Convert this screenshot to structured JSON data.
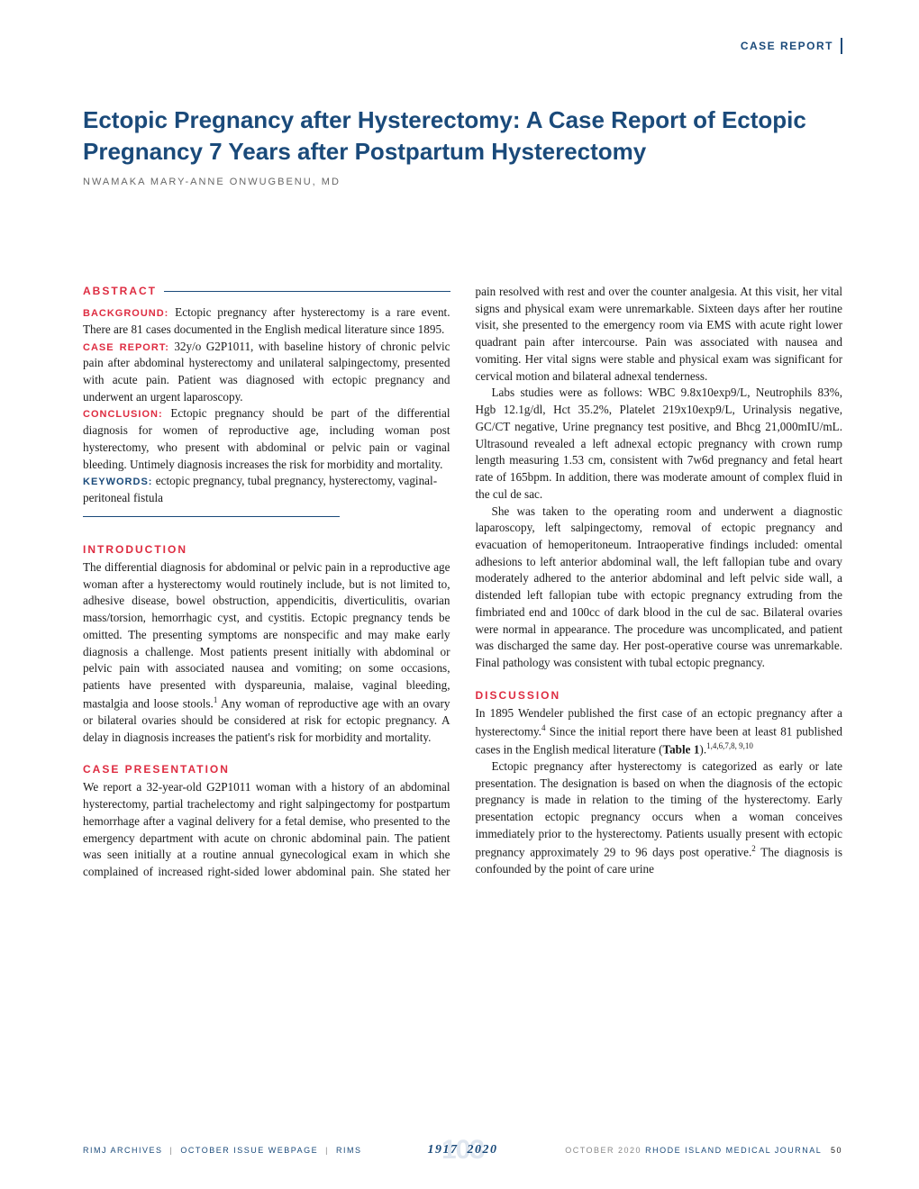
{
  "colors": {
    "accent_blue": "#1a4a7a",
    "accent_red": "#de2c41",
    "text": "#1a1a1a",
    "muted": "#888888",
    "background": "#ffffff",
    "footer_bg_num": "#dfe6ef"
  },
  "typography": {
    "title_fontsize": 26,
    "body_fontsize": 13.2,
    "section_header_fontsize": 12,
    "author_fontsize": 11,
    "footer_fontsize": 9
  },
  "header": {
    "label": "CASE REPORT"
  },
  "title": "Ectopic Pregnancy after Hysterectomy: A Case Report of Ectopic Pregnancy 7 Years after Postpartum Hysterectomy",
  "author": "NWAMAKA MARY-ANNE ONWUGBENU, MD",
  "abstract": {
    "header": "ABSTRACT",
    "background_label": "BACKGROUND:",
    "background_text": " Ectopic pregnancy after hysterectomy is a rare event. There are 81 cases documented in the English medical literature since 1895.",
    "case_label": "CASE REPORT:",
    "case_text": " 32y/o G2P1011, with baseline history of chronic pelvic pain after abdominal hysterectomy and unilateral salpingectomy, presented with acute pain. Patient was diagnosed with ectopic pregnancy and underwent an urgent laparoscopy.",
    "conclusion_label": "CONCLUSION:",
    "conclusion_text": " Ectopic pregnancy should be part of the differential diagnosis for women of reproductive age, including woman post hysterectomy, who present with abdominal or pelvic pain or vaginal bleeding. Untimely diagnosis increases the risk for morbidity and mortality.",
    "keywords_label": "KEYWORDS:",
    "keywords_text": " ectopic pregnancy, tubal pregnancy, hysterectomy, vaginal-peritoneal fistula"
  },
  "sections": {
    "introduction": {
      "header": "INTRODUCTION",
      "p1a": "The differential diagnosis for abdominal or pelvic pain in a reproductive age woman after a hysterectomy would routinely include, but is not limited to, adhesive disease, bowel obstruction, appendicitis, diverticulitis, ovarian mass/torsion, hemorrhagic cyst, and cystitis. Ectopic pregnancy tends be omitted. The presenting symptoms are nonspecific and may make early diagnosis a challenge. Most patients present initially with abdominal or pelvic pain with associated nausea and vomiting; on some occasions, patients have presented with dyspareunia, malaise, vaginal bleeding, mastalgia and loose stools.",
      "p1sup": "1",
      "p1b": " Any woman of reproductive age with an ovary or bilateral ovaries should be considered at risk for ectopic pregnancy. A delay in diagnosis increases the patient's risk for morbidity and mortality."
    },
    "case_presentation": {
      "header": "CASE PRESENTATION",
      "p1": "We report a 32-year-old G2P1011 woman with a history of an abdominal hysterectomy, partial trachelectomy and right salpingectomy for postpartum hemorrhage after a vaginal delivery for a fetal demise, who presented to the emergency department with acute on chronic abdominal pain. The patient was seen initially at a routine annual gynecological exam in which she complained of increased right-sided lower abdominal pain. She stated her pain resolved with rest and over the counter analgesia. At this visit, her vital signs and physical exam were unremarkable. Sixteen days after her routine visit, she presented to the emergency room via EMS with acute right lower quadrant pain after intercourse. Pain was associated with nausea and vomiting. Her vital signs were stable and physical exam was significant for cervical motion and bilateral adnexal tenderness.",
      "p2": "Labs studies were as follows: WBC 9.8x10exp9/L, Neutrophils 83%, Hgb 12.1g/dl, Hct 35.2%, Platelet 219x10exp9/L, Urinalysis negative, GC/CT negative, Urine pregnancy test positive, and Bhcg 21,000mIU/mL. Ultrasound revealed a left adnexal ectopic pregnancy with crown rump length measuring 1.53 cm, consistent with 7w6d pregnancy and fetal heart rate of 165bpm. In addition, there was moderate amount of complex fluid in the cul de sac.",
      "p3": "She was taken to the operating room and underwent a diagnostic laparoscopy, left salpingectomy, removal of ectopic pregnancy and evacuation of hemoperitoneum. Intraoperative findings included: omental adhesions to left anterior abdominal wall, the left fallopian tube and ovary moderately adhered to the anterior abdominal and left pelvic side wall, a distended left fallopian tube with ectopic pregnancy extruding from the fimbriated end and 100cc of dark blood in the cul de sac. Bilateral ovaries were normal in appearance. The procedure was uncomplicated, and patient was discharged the same day. Her post-operative course was unremarkable. Final pathology was consistent with tubal ectopic pregnancy."
    },
    "discussion": {
      "header": "DISCUSSION",
      "p1a": "In 1895 Wendeler published the first case of an ectopic pregnancy after a hysterectomy.",
      "p1sup1": "4",
      "p1b": " Since the initial report there have been at least 81 published cases in the English medical literature (",
      "p1table": "Table 1",
      "p1c": ").",
      "p1sup2": "1,4,6,7,8, 9,10",
      "p2a": "Ectopic pregnancy after hysterectomy is categorized as early or late presentation. The designation is based on when the diagnosis of the ectopic pregnancy is made in relation to the timing of the hysterectomy. Early presentation ectopic pregnancy occurs when a woman conceives immediately prior to the hysterectomy. Patients usually present with ectopic pregnancy approximately 29 to 96 days post operative.",
      "p2sup": "2",
      "p2b": " The diagnosis is confounded by the point of care urine"
    }
  },
  "footer": {
    "archives": "RIMJ ARCHIVES",
    "sep": "|",
    "issue": "OCTOBER ISSUE WEBPAGE",
    "rims": "RIMS",
    "year_bg": "103",
    "year_from": "1917",
    "year_to": "2020",
    "month": "OCTOBER 2020",
    "journal": "RHODE ISLAND MEDICAL JOURNAL",
    "page": "50"
  }
}
